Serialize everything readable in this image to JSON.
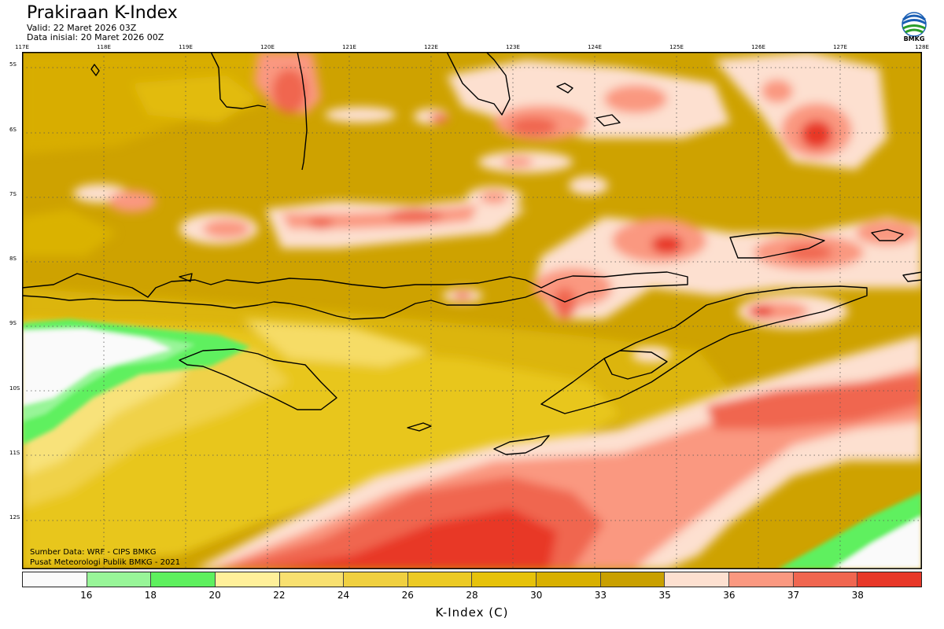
{
  "header": {
    "title": "Prakiraan K-Index",
    "valid": "Valid: 22 Maret 2026 03Z",
    "init": "Data inisial: 20 Maret 2026 00Z"
  },
  "logo": {
    "text": "BMKG",
    "icon": "bmkg-logo-icon"
  },
  "map": {
    "lon_labels": [
      "117E",
      "118E",
      "119E",
      "120E",
      "121E",
      "122E",
      "123E",
      "124E",
      "125E",
      "126E",
      "127E",
      "128E"
    ],
    "lat_labels": [
      "5S",
      "6S",
      "7S",
      "8S",
      "9S",
      "10S",
      "11S",
      "12S"
    ],
    "extent": {
      "lon": [
        117,
        128
      ],
      "lat": [
        -4.8,
        -12.8
      ]
    },
    "source": "Sumber Data: WRF - CIPS BMKG",
    "credit": "Pusat Meteorologi Publik BMKG - 2021"
  },
  "colorbar": {
    "colors": [
      "#fafafa",
      "#98f598",
      "#5ef05e",
      "#fff09a",
      "#f8e070",
      "#f0d040",
      "#ecca24",
      "#e6c20a",
      "#d8b000",
      "#c9a000",
      "#fde0d0",
      "#fa9880",
      "#f06650",
      "#e83828"
    ],
    "ticks": [
      "16",
      "18",
      "20",
      "22",
      "24",
      "26",
      "28",
      "30",
      "33",
      "35",
      "36",
      "37",
      "38"
    ],
    "label": "K-Index (C)"
  }
}
